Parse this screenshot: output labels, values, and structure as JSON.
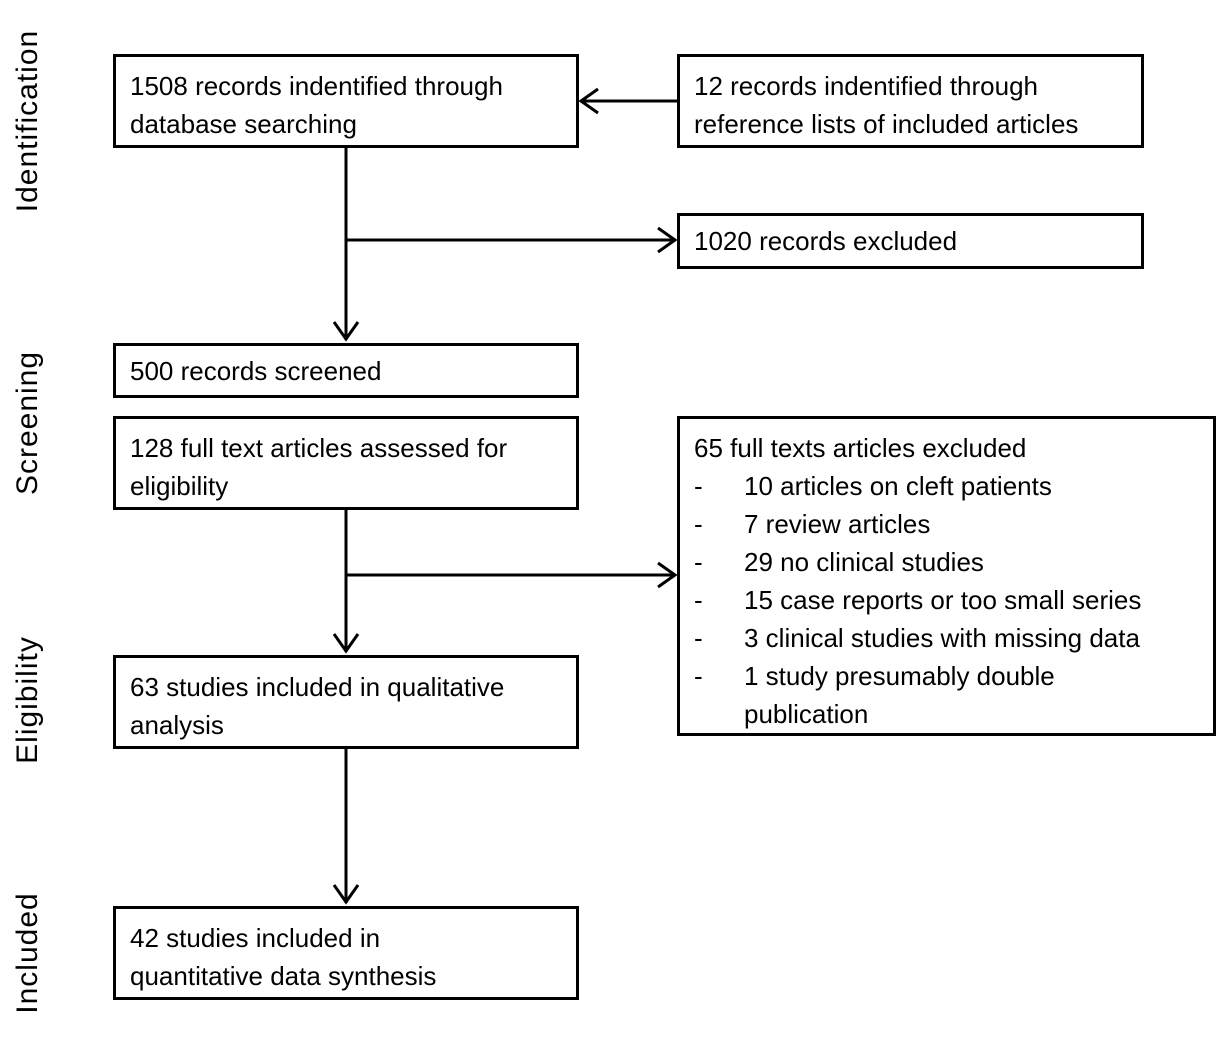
{
  "stages": {
    "identification": "Identification",
    "screening": "Screening",
    "eligibility": "Eligibility",
    "included": "Included"
  },
  "boxes": {
    "database_search": "1508 records indentified through\ndatabase searching",
    "reference_lists": "12 records indentified through\nreference lists of included articles",
    "records_excluded": "1020 records excluded",
    "records_screened": "500  records screened",
    "full_text_assessed": "128  full text articles assessed for\neligibility",
    "qualitative": "63 studies included in qualitative\nanalysis",
    "quantitative": "42 studies included in\nquantitative data synthesis"
  },
  "exclusions": {
    "title": "65  full texts articles excluded",
    "bullet": "-",
    "items": [
      "10 articles on cleft patients",
      "7 review articles",
      "29 no clinical studies",
      "15 case reports or too small series",
      "3 clinical studies with missing data",
      "1 study presumably double\npublication"
    ]
  }
}
